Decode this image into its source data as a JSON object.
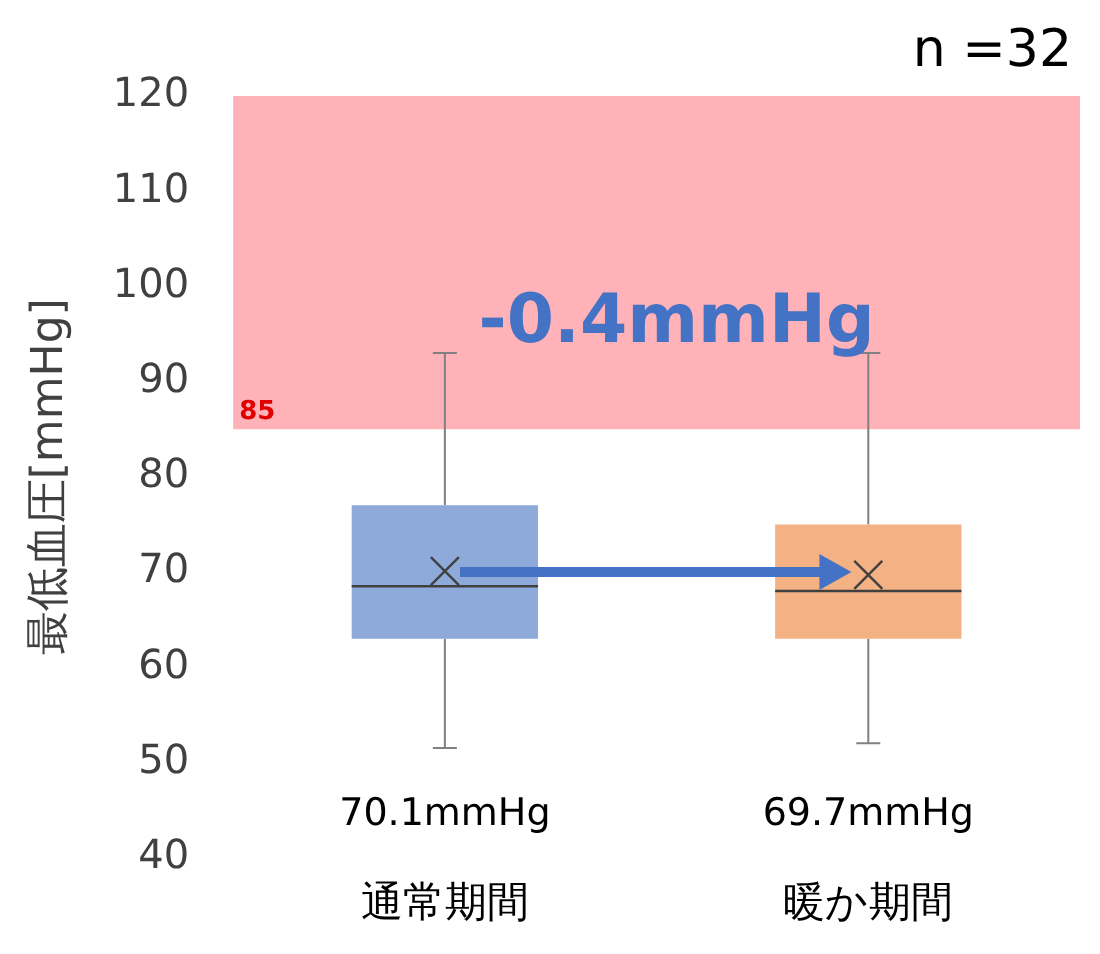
{
  "chart_data": {
    "type": "box",
    "ylabel": "最低血圧[mmHg]",
    "categories": [
      "通常期間",
      "暖か期間"
    ],
    "colors": [
      "#8eaadb",
      "#f4b183"
    ],
    "boxes": [
      {
        "low": 51.5,
        "q1": 63,
        "median": 68.5,
        "q3": 77,
        "high": 93,
        "mean": 70.1
      },
      {
        "low": 52,
        "q1": 63,
        "median": 68,
        "q3": 75,
        "high": 93,
        "mean": 69.7
      }
    ],
    "ylim": [
      40,
      120
    ],
    "yticks": [
      40,
      50,
      60,
      70,
      80,
      90,
      100,
      110,
      120
    ],
    "marker": "cross",
    "bands": [
      {
        "axis": "y",
        "from": 85,
        "to": 120,
        "label": "85",
        "color": "#ffb3b8"
      }
    ],
    "annotations": [
      "n =32",
      "-0.4mmHg",
      "70.1mmHg",
      "69.7mmHg"
    ]
  }
}
